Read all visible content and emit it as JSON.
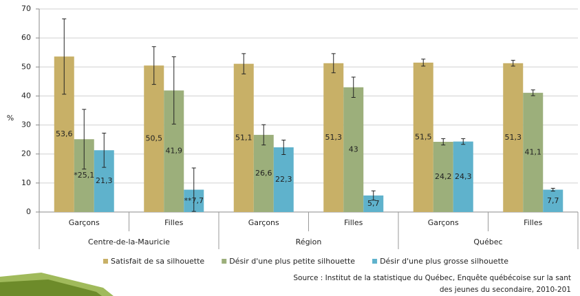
{
  "chart_data": {
    "type": "bar",
    "ylabel": "%",
    "categories": [
      "Garçons",
      "Filles",
      "Garçons",
      "Filles",
      "Garçons",
      "Filles"
    ],
    "groups": [
      "Centre-de-la-Mauricie",
      "Région",
      "Québec"
    ],
    "series": [
      {
        "name": "Satisfait de sa silhouette",
        "color": "#c8b067",
        "values": [
          53.6,
          50.5,
          51.1,
          51.3,
          51.5,
          51.3
        ],
        "value_labels": [
          "53,6",
          "50,5",
          "51,1",
          "51,3",
          "51,5",
          "51,3"
        ],
        "errors": [
          13,
          6.5,
          3.5,
          3.3,
          1.2,
          1.0
        ]
      },
      {
        "name": "Désir d'une plus petite silhouette",
        "color": "#9caf7b",
        "values": [
          25.1,
          41.9,
          26.6,
          43,
          24.2,
          41.1
        ],
        "value_labels": [
          "*25,1",
          "41,9",
          "26,6",
          "43",
          "24,2",
          "41,1"
        ],
        "errors": [
          10.3,
          11.6,
          3.5,
          3.5,
          1.1,
          1.0
        ]
      },
      {
        "name": "Désir d'une plus grosse silhouette",
        "color": "#5fb2cc",
        "values": [
          21.3,
          7.7,
          22.3,
          5.7,
          24.3,
          7.7
        ],
        "value_labels": [
          "21,3",
          "**7,7",
          "22,3",
          "5,7",
          "24,3",
          "7,7"
        ],
        "errors": [
          5.9,
          7.5,
          2.5,
          1.6,
          1.0,
          0.5
        ]
      }
    ],
    "ylim": [
      0,
      70
    ],
    "yticks": [
      0,
      10,
      20,
      30,
      40,
      50,
      60,
      70
    ],
    "grid": true,
    "source": [
      "Source : Institut de la statistique du Québec, Enquête québécoise sur la sant",
      "des jeunes du secondaire, 2010-201"
    ]
  }
}
